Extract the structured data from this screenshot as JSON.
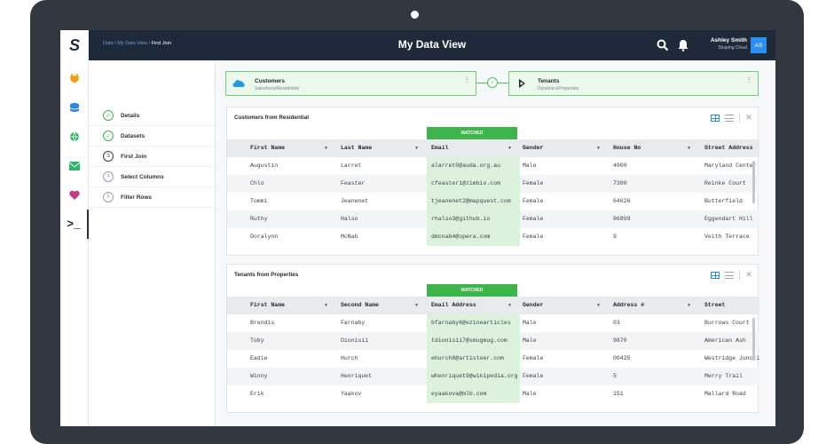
{
  "app": {
    "logo": "S",
    "title": "My Data View"
  },
  "breadcrumb": {
    "items": [
      "Data",
      "My Data View"
    ],
    "current": "First Join",
    "sep": " / "
  },
  "user": {
    "name": "Ashley Smith",
    "org": "Shaping Cloud",
    "initials": "AS"
  },
  "rail": {
    "icons": [
      "plug-icon",
      "database-icon",
      "globe-icon",
      "mail-icon",
      "heart-icon",
      "terminal-icon"
    ],
    "terminal_glyph": ">_"
  },
  "steps": [
    {
      "num": "✓",
      "label": "Details",
      "state": "done"
    },
    {
      "num": "✓",
      "label": "Datasets",
      "state": "done"
    },
    {
      "num": "3",
      "label": "First Join",
      "state": "active"
    },
    {
      "num": "4",
      "label": "Select Columns",
      "state": "todo"
    },
    {
      "num": "5",
      "label": "Filter Rows",
      "state": "todo"
    }
  ],
  "sources": {
    "left": {
      "name": "Customers",
      "sub": "Salesforce/Residential"
    },
    "right": {
      "name": "Tenants",
      "sub": "Dynamics/Properties"
    },
    "link_glyph": "✓",
    "menu_glyph": "⋮"
  },
  "matched_label": "MATCHED",
  "close_glyph": "✕",
  "sort_glyph": "▼",
  "table1": {
    "title": "Customers from Residential",
    "columns": [
      "First Name",
      "Last Name",
      "Email",
      "Gender",
      "House No",
      "Street Address"
    ],
    "rows": [
      [
        "Augustin",
        "Larret",
        "alarret0@auda.org.au",
        "Male",
        "4000",
        "Maryland Center"
      ],
      [
        "Chlo",
        "Feaster",
        "cfeaster1@zimbio.com",
        "Female",
        "7300",
        "Reinke Court"
      ],
      [
        "Tommi",
        "Jeanenet",
        "tjeanenet2@mapquest.com",
        "Female",
        "64626",
        "Butterfield"
      ],
      [
        "Ruthy",
        "Halso",
        "rhalso3@github.io",
        "Female",
        "86899",
        "Eggendart Hill"
      ],
      [
        "Doralynn",
        "McNab",
        "dmcnab4@opera.com",
        "Female",
        "9",
        "Veith Terrace"
      ]
    ]
  },
  "table2": {
    "title": "Tenants from Properties",
    "columns": [
      "First Name",
      "Second Name",
      "Email Address",
      "Gender",
      "Address #",
      "Street"
    ],
    "rows": [
      [
        "Brendis",
        "Farnaby",
        "bfarnaby6@ezinearticles",
        "Male",
        "03",
        "Burrows Court"
      ],
      [
        "Toby",
        "Dionisii",
        "tdionisii7@smugmug.com",
        "Male",
        "9870",
        "American Ash"
      ],
      [
        "Eadie",
        "Hurch",
        "ehurch8@artisteer.com",
        "Female",
        "00425",
        "Westridge Junction"
      ],
      [
        "Winny",
        "Henriquet",
        "whenriquet9@wikipedia.org",
        "Female",
        "5",
        "Merry Trail"
      ],
      [
        "Erik",
        "Yaakov",
        "eyaakova@mlb.com",
        "Male",
        "151",
        "Mallard Road"
      ]
    ]
  },
  "colors": {
    "accent": "#3db54a",
    "topbar": "#1e2a3a",
    "link": "#2e86de"
  }
}
